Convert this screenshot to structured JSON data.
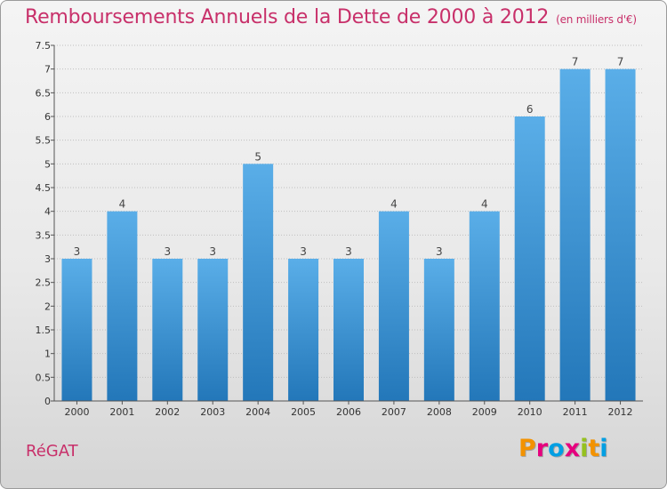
{
  "title": "Remboursements Annuels de la Dette de 2000 à 2012",
  "unit_note": "(en milliers d'€)",
  "commune": "RéGAT",
  "logo": {
    "text": "Proxiti",
    "letters": [
      {
        "ch": "P",
        "color": "#f39200"
      },
      {
        "ch": "r",
        "color": "#e6007e"
      },
      {
        "ch": "o",
        "color": "#009fe3"
      },
      {
        "ch": "x",
        "color": "#e6007e"
      },
      {
        "ch": "i",
        "color": "#95c11f"
      },
      {
        "ch": "t",
        "color": "#f39200"
      },
      {
        "ch": "i",
        "color": "#009fe3"
      }
    ]
  },
  "colors": {
    "title": "#c8306a",
    "bar_top": "#5aaee8",
    "bar_bottom": "#2377b9",
    "grid": "#bfbfbf",
    "axis_text": "#333333"
  },
  "chart_data": {
    "type": "bar",
    "title": "Remboursements Annuels de la Dette de 2000 à 2012",
    "xlabel": "",
    "ylabel": "",
    "categories": [
      "2000",
      "2001",
      "2002",
      "2003",
      "2004",
      "2005",
      "2006",
      "2007",
      "2008",
      "2009",
      "2010",
      "2011",
      "2012"
    ],
    "values": [
      3,
      4,
      3,
      3,
      5,
      3,
      3,
      4,
      3,
      4,
      6,
      7,
      7
    ],
    "data_labels": [
      "3",
      "4",
      "3",
      "3",
      "5",
      "3",
      "3",
      "4",
      "3",
      "4",
      "6",
      "7",
      "7"
    ],
    "ylim": [
      0,
      7.5
    ],
    "yticks": [
      0,
      0.5,
      1,
      1.5,
      2,
      2.5,
      3,
      3.5,
      4,
      4.5,
      5,
      5.5,
      6,
      6.5,
      7,
      7.5
    ],
    "ytick_labels": [
      "0",
      "0.5",
      "1",
      "1.5",
      "2",
      "2.5",
      "3",
      "3.5",
      "4",
      "4.5",
      "5",
      "5.5",
      "6",
      "6.5",
      "7",
      "7.5"
    ],
    "grid": true,
    "legend": "none"
  }
}
